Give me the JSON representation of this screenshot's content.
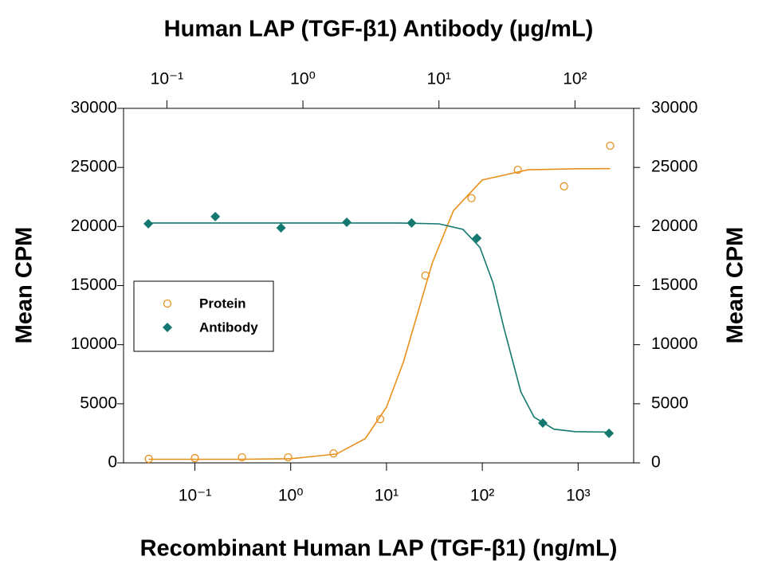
{
  "chart_data": {
    "type": "scatter",
    "x2label": "Human LAP (TGF-β1) Antibody (µg/mL)",
    "xlabel": "Recombinant Human LAP (TGF-β1) (ng/mL)",
    "ylabel": "Mean CPM",
    "y2label": "Mean CPM",
    "xlog": true,
    "xlim": [
      0.018,
      3800
    ],
    "xticks": [
      {
        "value": 0.1,
        "label": "10⁻¹"
      },
      {
        "value": 1,
        "label": "10⁰"
      },
      {
        "value": 10,
        "label": "10¹"
      },
      {
        "value": 100,
        "label": "10²"
      },
      {
        "value": 1000,
        "label": "10³"
      }
    ],
    "x2lim": [
      0.048,
      270
    ],
    "x2ticks": [
      {
        "value": 0.1,
        "label": "10⁻¹"
      },
      {
        "value": 1,
        "label": "10⁰"
      },
      {
        "value": 10,
        "label": "10¹"
      },
      {
        "value": 100,
        "label": "10²"
      }
    ],
    "ylim": [
      0,
      30000
    ],
    "yticks": [
      0,
      5000,
      10000,
      15000,
      20000,
      25000,
      30000
    ],
    "y2lim": [
      0,
      30000
    ],
    "y2ticks": [
      0,
      5000,
      10000,
      15000,
      20000,
      25000,
      30000
    ],
    "legend": "center-left",
    "series": [
      {
        "name": "Protein",
        "color": "#e8901c",
        "marker": "open-circle",
        "x": [
          0.033,
          0.1,
          0.31,
          0.94,
          2.8,
          8.6,
          25.5,
          77,
          235,
          713,
          2160
        ],
        "values": [
          340,
          400,
          470,
          470,
          800,
          3700,
          15850,
          22400,
          24800,
          23400,
          26840
        ],
        "fit": {
          "x": [
            0.033,
            0.1,
            0.3,
            1,
            3,
            6,
            10,
            15,
            20,
            30,
            50,
            100,
            300,
            1000,
            2160
          ],
          "values": [
            300,
            300,
            304,
            348,
            747,
            2050,
            4710,
            8530,
            11990,
            16910,
            21340,
            23940,
            24800,
            24890,
            24900
          ]
        }
      },
      {
        "name": "Antibody",
        "color": "#137870",
        "marker": "diamond",
        "axis": "x2",
        "x": [
          0.073,
          0.227,
          0.69,
          2.1,
          6.3,
          19,
          58,
          178
        ],
        "values": [
          20230,
          20840,
          19890,
          20360,
          20300,
          19010,
          3370,
          2500
        ],
        "fit": {
          "x": [
            0.073,
            1,
            5,
            10,
            15,
            20,
            25,
            30,
            40,
            50,
            70,
            100,
            178
          ],
          "values": [
            20300,
            20300,
            20300,
            20228,
            19760,
            18240,
            15220,
            11450,
            5997,
            3877,
            2853,
            2643,
            2605
          ]
        }
      }
    ]
  }
}
